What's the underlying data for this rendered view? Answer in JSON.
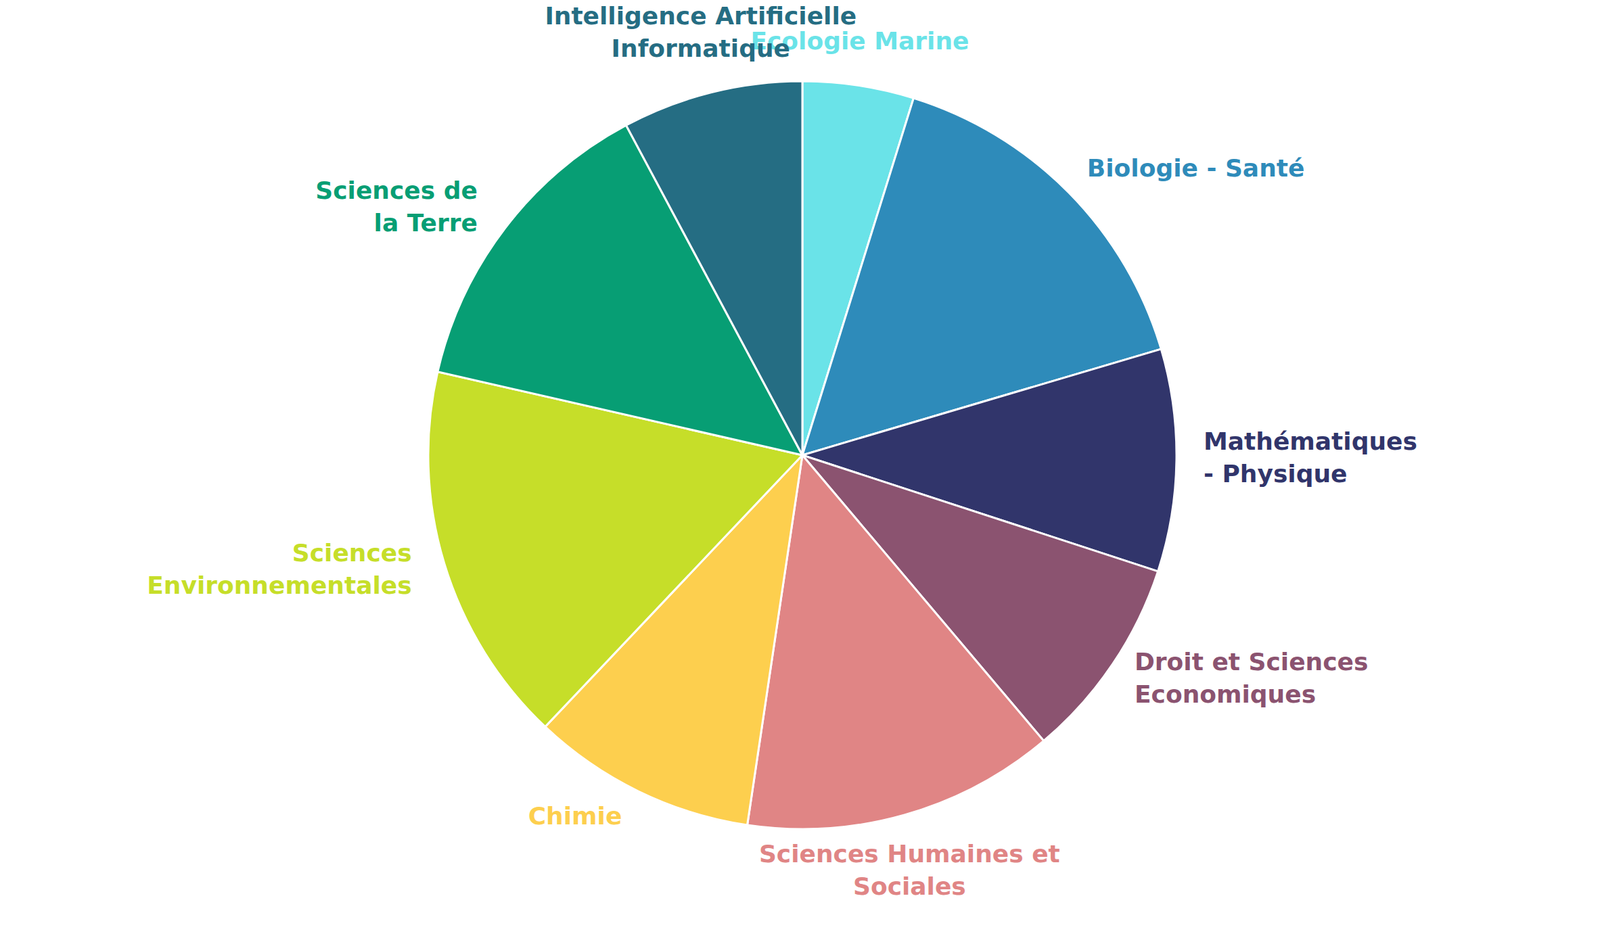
{
  "chart_data": {
    "type": "pie",
    "categories": [
      "Ecologie Marine",
      "Biologie - Santé",
      "Mathématiques\n- Physique",
      "Droit et Sciences\nEconomiques",
      "Sciences Humaines et\nSociales",
      "Chimie",
      "Sciences\nEnvironnementales",
      "Sciences de\nla Terre",
      "Intelligence Artificielle\nInformatique"
    ],
    "values": [
      4.8,
      15.6,
      9.6,
      8.8,
      13.5,
      9.7,
      16.5,
      13.6,
      7.8
    ],
    "colors": [
      "#6ae3e8",
      "#2e8bba",
      "#31356b",
      "#8b5370",
      "#e08585",
      "#fdcf4e",
      "#c6de29",
      "#079e74",
      "#256d83"
    ]
  }
}
